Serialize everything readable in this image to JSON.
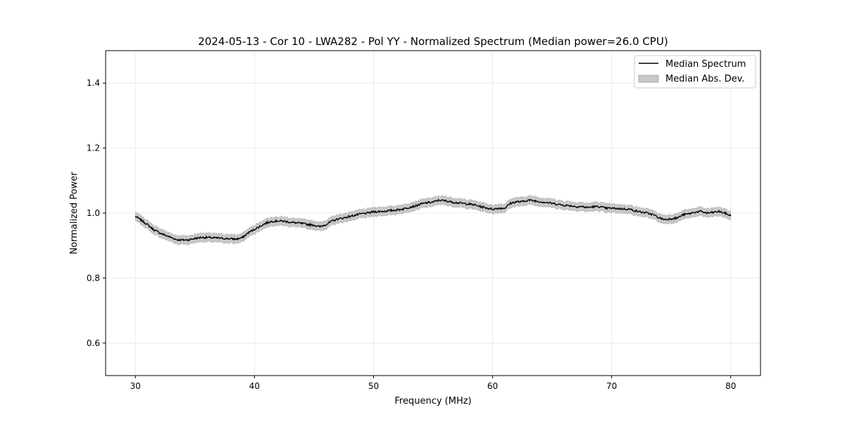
{
  "chart_data": {
    "type": "line",
    "title": "2024-05-13 - Cor 10 - LWA282 - Pol YY - Normalized Spectrum (Median power=26.0 CPU)",
    "xlabel": "Frequency (MHz)",
    "ylabel": "Normalized Power",
    "xlim": [
      27.5,
      82.5
    ],
    "ylim": [
      0.5,
      1.5
    ],
    "xticks": [
      30,
      40,
      50,
      60,
      70,
      80
    ],
    "yticks": [
      0.6,
      0.8,
      1.0,
      1.2,
      1.4
    ],
    "xtick_labels": [
      "30",
      "40",
      "50",
      "60",
      "70",
      "80"
    ],
    "ytick_labels": [
      "0.6",
      "0.8",
      "1.0",
      "1.2",
      "1.4"
    ],
    "grid": true,
    "legend_position": "top-right",
    "series": [
      {
        "name": "Median Spectrum",
        "color": "#000000",
        "x": [
          30,
          30.5,
          31,
          31.5,
          32,
          32.5,
          33,
          33.5,
          34,
          34.5,
          35,
          35.5,
          36,
          36.5,
          37,
          37.5,
          38,
          38.5,
          39,
          39.5,
          40,
          40.5,
          41,
          41.5,
          42,
          42.5,
          43,
          43.5,
          44,
          44.5,
          45,
          45.5,
          46,
          46.5,
          47,
          47.5,
          48,
          48.5,
          49,
          49.5,
          50,
          50.5,
          51,
          51.5,
          52,
          52.5,
          53,
          53.5,
          54,
          54.5,
          55,
          55.5,
          56,
          56.5,
          57,
          57.5,
          58,
          58.5,
          59,
          59.5,
          60,
          60.5,
          61,
          61.5,
          62,
          62.5,
          63,
          63.5,
          64,
          64.5,
          65,
          65.5,
          66,
          66.5,
          67,
          67.5,
          68,
          68.5,
          69,
          69.5,
          70,
          70.5,
          71,
          71.5,
          72,
          72.5,
          73,
          73.5,
          74,
          74.5,
          75,
          75.5,
          76,
          76.5,
          77,
          77.5,
          78,
          78.5,
          79,
          79.5,
          80
        ],
        "y": [
          0.99,
          0.978,
          0.965,
          0.95,
          0.94,
          0.932,
          0.925,
          0.918,
          0.917,
          0.918,
          0.922,
          0.925,
          0.925,
          0.924,
          0.923,
          0.922,
          0.921,
          0.92,
          0.925,
          0.94,
          0.95,
          0.96,
          0.97,
          0.975,
          0.976,
          0.975,
          0.972,
          0.97,
          0.968,
          0.965,
          0.963,
          0.958,
          0.965,
          0.975,
          0.982,
          0.985,
          0.99,
          0.994,
          0.998,
          1.0,
          1.004,
          1.005,
          1.006,
          1.008,
          1.01,
          1.013,
          1.018,
          1.022,
          1.028,
          1.032,
          1.034,
          1.04,
          1.038,
          1.035,
          1.032,
          1.03,
          1.028,
          1.025,
          1.02,
          1.016,
          1.012,
          1.015,
          1.015,
          1.03,
          1.035,
          1.035,
          1.04,
          1.038,
          1.035,
          1.033,
          1.03,
          1.027,
          1.024,
          1.023,
          1.02,
          1.02,
          1.017,
          1.02,
          1.02,
          1.015,
          1.015,
          1.014,
          1.013,
          1.012,
          1.007,
          1.003,
          1.0,
          0.995,
          0.985,
          0.98,
          0.983,
          0.985,
          0.995,
          0.998,
          1.003,
          1.005,
          1.0,
          1.002,
          1.005,
          1.0,
          0.992
        ]
      },
      {
        "name": "Median Abs. Dev.",
        "color": "#c8c8c8",
        "band_halfwidth": 0.012
      }
    ]
  }
}
